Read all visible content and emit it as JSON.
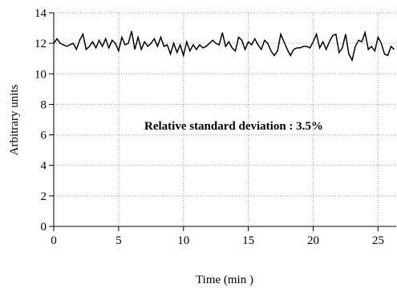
{
  "chart_data": {
    "type": "line",
    "annotation": "Relative standard deviation : 3.5%",
    "xlabel": "Time (min )",
    "ylabel": "Arbitrary units",
    "x": [
      0,
      0.25,
      0.5,
      0.75,
      1,
      1.25,
      1.5,
      1.75,
      2,
      2.25,
      2.5,
      2.75,
      3,
      3.25,
      3.5,
      3.75,
      4,
      4.25,
      4.5,
      4.75,
      5,
      5.25,
      5.5,
      5.75,
      6,
      6.25,
      6.5,
      6.75,
      7,
      7.25,
      7.5,
      7.75,
      8,
      8.25,
      8.5,
      8.75,
      9,
      9.25,
      9.5,
      9.75,
      10,
      10.25,
      10.5,
      10.75,
      11,
      11.25,
      11.5,
      11.75,
      12,
      12.25,
      12.5,
      12.75,
      13,
      13.25,
      13.5,
      13.75,
      14,
      14.25,
      14.5,
      14.75,
      15,
      15.25,
      15.5,
      15.75,
      16,
      16.25,
      16.5,
      16.75,
      17,
      17.25,
      17.5,
      17.75,
      18,
      18.25,
      18.5,
      18.75,
      19,
      19.25,
      19.5,
      19.75,
      20,
      20.25,
      20.5,
      20.75,
      21,
      21.25,
      21.5,
      21.75,
      22,
      22.25,
      22.5,
      22.75,
      23,
      23.25,
      23.5,
      23.75,
      24,
      24.25,
      24.5,
      24.75,
      25,
      25.25,
      25.5,
      25.75,
      26,
      26.25
    ],
    "values": [
      12.0,
      12.3,
      12.0,
      11.9,
      11.8,
      11.9,
      12.0,
      11.6,
      12.2,
      12.6,
      11.6,
      11.8,
      12.1,
      11.7,
      12.2,
      11.8,
      12.3,
      11.7,
      12.2,
      12.0,
      11.5,
      12.4,
      11.9,
      12.0,
      12.8,
      11.6,
      12.4,
      11.6,
      12.1,
      11.8,
      12.0,
      12.3,
      11.8,
      12.4,
      11.8,
      11.9,
      11.3,
      12.0,
      11.4,
      11.9,
      11.2,
      12.1,
      11.5,
      11.9,
      11.6,
      11.9,
      11.7,
      11.8,
      12.0,
      12.2,
      12.0,
      11.9,
      12.7,
      11.8,
      12.1,
      11.7,
      11.5,
      12.4,
      12.2,
      11.6,
      12.1,
      11.9,
      12.3,
      11.9,
      11.6,
      12.2,
      12.0,
      11.5,
      11.2,
      11.5,
      12.6,
      12.1,
      11.6,
      11.2,
      11.6,
      11.7,
      11.7,
      11.8,
      11.8,
      11.7,
      12.1,
      12.6,
      11.7,
      12.1,
      11.6,
      12.1,
      12.5,
      12.6,
      11.4,
      11.7,
      12.6,
      11.3,
      10.9,
      11.8,
      12.2,
      12.1,
      12.7,
      11.6,
      11.8,
      11.5,
      12.4,
      12.0,
      11.3,
      11.2,
      11.8,
      11.6
    ],
    "color": "#000000",
    "xlim": [
      0,
      26.4
    ],
    "ylim": [
      0,
      14
    ],
    "xticks": [
      0,
      5,
      10,
      15,
      20,
      25
    ],
    "yticks": [
      0,
      2,
      4,
      6,
      8,
      10,
      12,
      14
    ],
    "grid": true
  }
}
